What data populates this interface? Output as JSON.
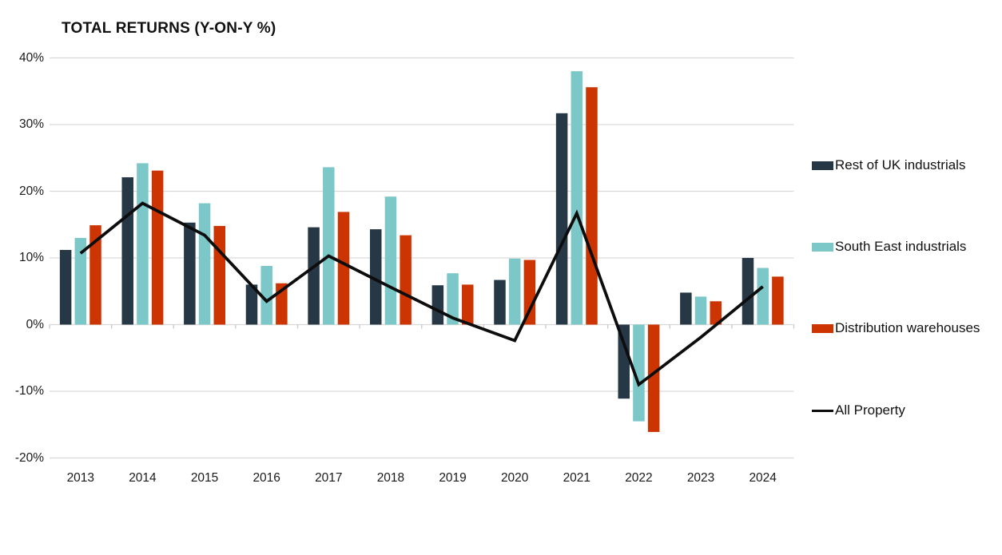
{
  "chart_data": {
    "type": "bar",
    "overlay": "line",
    "title": "TOTAL RETURNS (Y-ON-Y %)",
    "categories": [
      "2013",
      "2014",
      "2015",
      "2016",
      "2017",
      "2018",
      "2019",
      "2020",
      "2021",
      "2022",
      "2023",
      "2024"
    ],
    "series": [
      {
        "name": "Rest of UK industrials",
        "color": "#263746",
        "values": [
          11.2,
          22.1,
          15.3,
          6.0,
          14.6,
          14.3,
          5.9,
          6.7,
          31.7,
          -11.1,
          4.8,
          10.0
        ]
      },
      {
        "name": "South East industrials",
        "color": "#7cc7c8",
        "values": [
          13.0,
          24.2,
          18.2,
          8.8,
          23.6,
          19.2,
          7.7,
          9.9,
          38.0,
          -14.5,
          4.2,
          8.5
        ]
      },
      {
        "name": "Distribution warehouses",
        "color": "#cc3502",
        "values": [
          14.9,
          23.1,
          14.8,
          6.2,
          16.9,
          13.4,
          6.0,
          9.7,
          35.6,
          -16.1,
          3.5,
          7.2
        ]
      }
    ],
    "line_series": {
      "name": "All Property",
      "color": "#0d0d0d",
      "values": [
        10.7,
        18.2,
        13.4,
        3.5,
        10.3,
        5.6,
        1.0,
        -2.4,
        16.7,
        -9.0,
        -1.9,
        5.7
      ]
    },
    "y_ticks": [
      40,
      30,
      20,
      10,
      0,
      -10,
      -20
    ],
    "y_tick_labels": [
      "40%",
      "30%",
      "20%",
      "10%",
      "0%",
      "-10%",
      "-20%"
    ],
    "ylim": [
      -20,
      40
    ],
    "xlabel": "",
    "ylabel": "",
    "grid": "horizontal",
    "legend_position": "right",
    "colors": {
      "gridline": "#d9d9d9",
      "axis_tick": "#c9c9c9",
      "text": "#1a1a1a"
    }
  }
}
